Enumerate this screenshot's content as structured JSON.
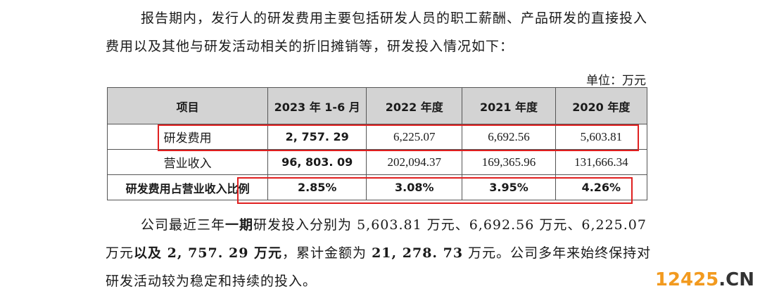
{
  "paragraph1": "报告期内，发行人的研发费用主要包括研发人员的职工薪酬、产品研发的直接投入费用以及其他与研发活动相关的折旧摊销等，研发投入情况如下：",
  "unit": "单位：万元",
  "table": {
    "headers": [
      "项目",
      "2023 年 1-6 月",
      "2022 年度",
      "2021 年度",
      "2020 年度"
    ],
    "rows": [
      [
        "研发费用",
        "2, 757. 29",
        "6,225.07",
        "6,692.56",
        "5,603.81"
      ],
      [
        "营业收入",
        "96, 803. 09",
        "202,094.37",
        "169,365.96",
        "131,666.34"
      ],
      [
        "研发费用占营业收入比例",
        "2.85%",
        "3.08%",
        "3.95%",
        "4.26%"
      ]
    ]
  },
  "paragraph2": {
    "part1": "公司最近三年",
    "part2": "一期",
    "part3": "研发投入分别为 5,603.81 万元、6,692.56 万元、6,225.07 万元",
    "part4": "以及 2, 757. 29 万元",
    "part5": "，累计金额为 ",
    "part6": "21, 278. 73",
    "part7": " 万元。公司多年来始终保持对研发活动较为稳定和持续的投入。"
  },
  "watermark": {
    "number": "12425",
    "suffix": ".CN"
  },
  "colors": {
    "highlight": "#e02020",
    "header_bg": "#d3d3d3",
    "watermark": "#f29a1f"
  }
}
